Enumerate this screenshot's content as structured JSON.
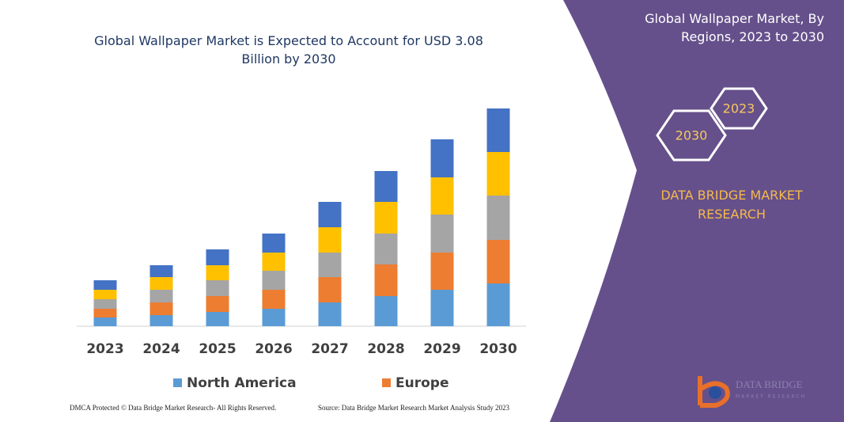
{
  "chart_data": {
    "type": "bar",
    "stacked": true,
    "title": "Global Wallpaper Market is Expected to Account for USD 3.08 Billion by 2030",
    "categories": [
      "2023",
      "2024",
      "2025",
      "2026",
      "2027",
      "2028",
      "2029",
      "2030"
    ],
    "series": [
      {
        "name": "North America",
        "color": "#5b9bd5",
        "values": [
          11,
          14,
          18,
          22,
          30,
          38,
          46,
          54
        ]
      },
      {
        "name": "Europe",
        "color": "#ed7d31",
        "values": [
          11,
          16,
          20,
          24,
          32,
          40,
          47,
          55
        ]
      },
      {
        "color": "#a5a5a5",
        "values": [
          12,
          16,
          20,
          24,
          31,
          39,
          48,
          56
        ]
      },
      {
        "color": "#ffc000",
        "values": [
          12,
          16,
          19,
          23,
          32,
          40,
          47,
          55
        ]
      },
      {
        "color": "#4472c4",
        "values": [
          12,
          15,
          20,
          24,
          32,
          39,
          48,
          55
        ]
      }
    ],
    "ylim": [
      0,
      300
    ]
  },
  "panel": {
    "title": "Global Wallpaper Market, By Regions, 2023 to 2030",
    "hex_labels": [
      "2023",
      "2030"
    ],
    "brand": "DATA BRIDGE MARKET RESEARCH"
  },
  "footer": {
    "left": "DMCA Protected © Data Bridge Market Research- All Rights Reserved.",
    "right": "Source: Data Bridge Market Research Market Analysis Study 2023"
  },
  "logo": {
    "name": "DATA BRIDGE",
    "tagline": "MARKET RESEARCH"
  }
}
